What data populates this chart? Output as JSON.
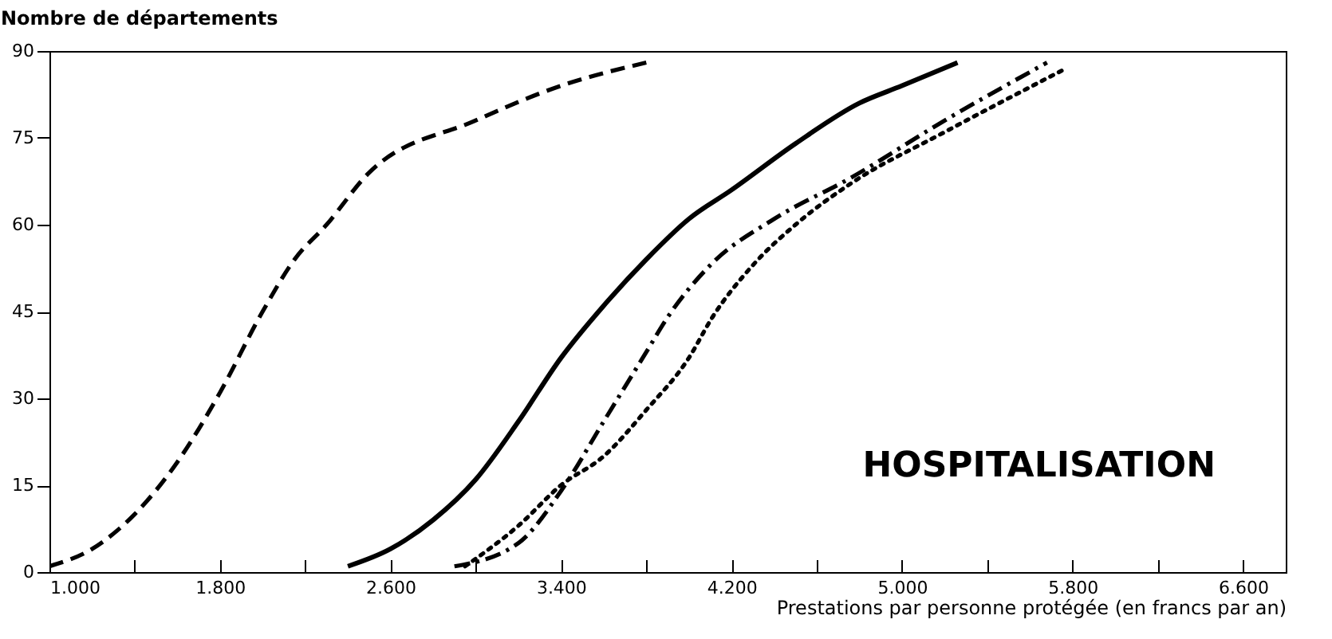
{
  "chart_data": {
    "type": "line",
    "ylabel": "Nombre de départements",
    "xlabel": "Prestations par personne protégée (en francs par an)",
    "annotations": [
      "HOSPITALISATION"
    ],
    "xlim": [
      1000,
      6800
    ],
    "ylim": [
      0,
      90
    ],
    "xticks": [
      {
        "value": 1000,
        "label": "1.000"
      },
      {
        "value": 1400,
        "label": null
      },
      {
        "value": 1800,
        "label": "1.800"
      },
      {
        "value": 2200,
        "label": null
      },
      {
        "value": 2600,
        "label": "2.600"
      },
      {
        "value": 3000,
        "label": null
      },
      {
        "value": 3400,
        "label": "3.400"
      },
      {
        "value": 3800,
        "label": null
      },
      {
        "value": 4200,
        "label": "4.200"
      },
      {
        "value": 4600,
        "label": null
      },
      {
        "value": 5000,
        "label": "5.000"
      },
      {
        "value": 5400,
        "label": null
      },
      {
        "value": 5800,
        "label": "5.800"
      },
      {
        "value": 6200,
        "label": null
      },
      {
        "value": 6600,
        "label": "6.600"
      }
    ],
    "yticks": [
      0,
      15,
      30,
      45,
      60,
      75,
      90
    ],
    "grid": false,
    "series": [
      {
        "color": "#000000",
        "line_style": "dashed",
        "x": [
          1000,
          1200,
          1400,
          1600,
          1800,
          2000,
          2150,
          2300,
          2500,
          3000,
          3400,
          3800
        ],
        "values": [
          1,
          4,
          10,
          19,
          31,
          45,
          54,
          60,
          69,
          78,
          84,
          88
        ]
      },
      {
        "color": "#000000",
        "line_style": "solid",
        "x": [
          2400,
          2600,
          2800,
          3000,
          3200,
          3400,
          3600,
          3800,
          4000,
          4200,
          4500,
          4800,
          5000,
          5260
        ],
        "values": [
          1,
          4,
          9,
          16,
          26,
          37,
          46,
          54,
          61,
          66,
          74,
          81,
          84,
          88
        ]
      },
      {
        "color": "#000000",
        "line_style": "dashdot",
        "x": [
          2900,
          3200,
          3400,
          3600,
          3800,
          3900,
          4100,
          4400,
          4755,
          5200,
          5680
        ],
        "values": [
          1,
          5,
          14,
          26,
          38,
          44,
          53,
          61,
          68,
          78,
          88
        ]
      },
      {
        "color": "#000000",
        "line_style": "dotted",
        "x": [
          2950,
          3200,
          3400,
          3600,
          3800,
          4000,
          4110,
          4300,
          4500,
          4755,
          5200,
          5770
        ],
        "values": [
          1,
          8,
          15,
          20,
          28,
          37,
          44,
          53,
          60,
          67,
          76,
          87
        ]
      }
    ]
  }
}
